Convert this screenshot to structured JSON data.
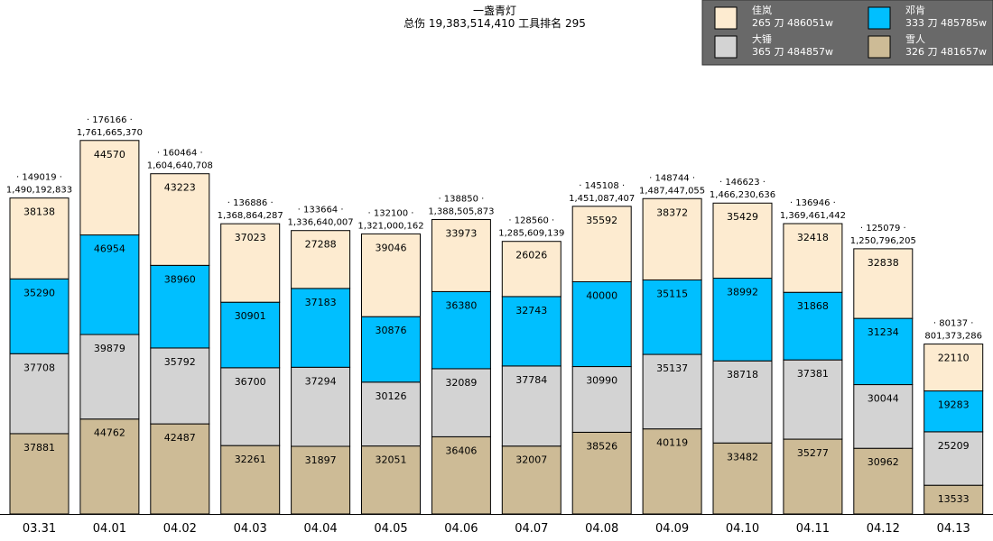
{
  "chart_data": {
    "type": "bar",
    "stacked": true,
    "title": "一盏青灯",
    "subtitle": "总伤 19,383,514,410 工具排名 295",
    "categories": [
      "03.31",
      "04.01",
      "04.02",
      "04.03",
      "04.04",
      "04.05",
      "04.06",
      "04.07",
      "04.08",
      "04.09",
      "04.10",
      "04.11",
      "04.12",
      "04.13"
    ],
    "series": [
      {
        "name": "佳岚",
        "legend_detail": "265 刀 486051w",
        "color": "#fdebd0",
        "values": [
          38138,
          44570,
          43223,
          37023,
          27288,
          39046,
          33973,
          26026,
          35592,
          38372,
          35429,
          32418,
          32838,
          22110
        ]
      },
      {
        "name": "邓肯",
        "legend_detail": "333 刀 485785w",
        "color": "#00bfff",
        "values": [
          35290,
          46954,
          38960,
          30901,
          37183,
          30876,
          36380,
          32743,
          40000,
          35115,
          38992,
          31868,
          31234,
          19283
        ]
      },
      {
        "name": "大锤",
        "legend_detail": "365 刀 484857w",
        "color": "#d3d3d3",
        "values": [
          37708,
          39879,
          35792,
          36700,
          37294,
          30126,
          32089,
          37784,
          30990,
          35137,
          38718,
          37381,
          30044,
          25209
        ]
      },
      {
        "name": "雪人",
        "legend_detail": "326 刀 481657w",
        "color": "#cdbb96",
        "values": [
          37881,
          44762,
          42487,
          32261,
          31897,
          32051,
          36406,
          32007,
          38526,
          40119,
          33482,
          35277,
          30962,
          13533
        ]
      }
    ],
    "top_counts": [
      "· 149019 ·",
      "· 176166 ·",
      "· 160464 ·",
      "· 136886 ·",
      "· 133664 ·",
      "· 132100 ·",
      "· 138850 ·",
      "· 128560 ·",
      "· 145108 ·",
      "· 148744 ·",
      "· 146623 ·",
      "· 136946 ·",
      "· 125079 ·",
      "· 80137 ·"
    ],
    "top_damage": [
      "1,490,192,833",
      "1,761,665,370",
      "1,604,640,708",
      "1,368,864,287",
      "1,336,640,007",
      "1,321,000,162",
      "1,388,505,873",
      "1,285,609,139",
      "1,451,087,407",
      "1,487,447,055",
      "1,466,230,636",
      "1,369,461,442",
      "1,250,796,205",
      "801,373,286"
    ],
    "ylim": [
      0,
      185000
    ],
    "legend_position": "top-right",
    "legend_background": "#696969"
  }
}
